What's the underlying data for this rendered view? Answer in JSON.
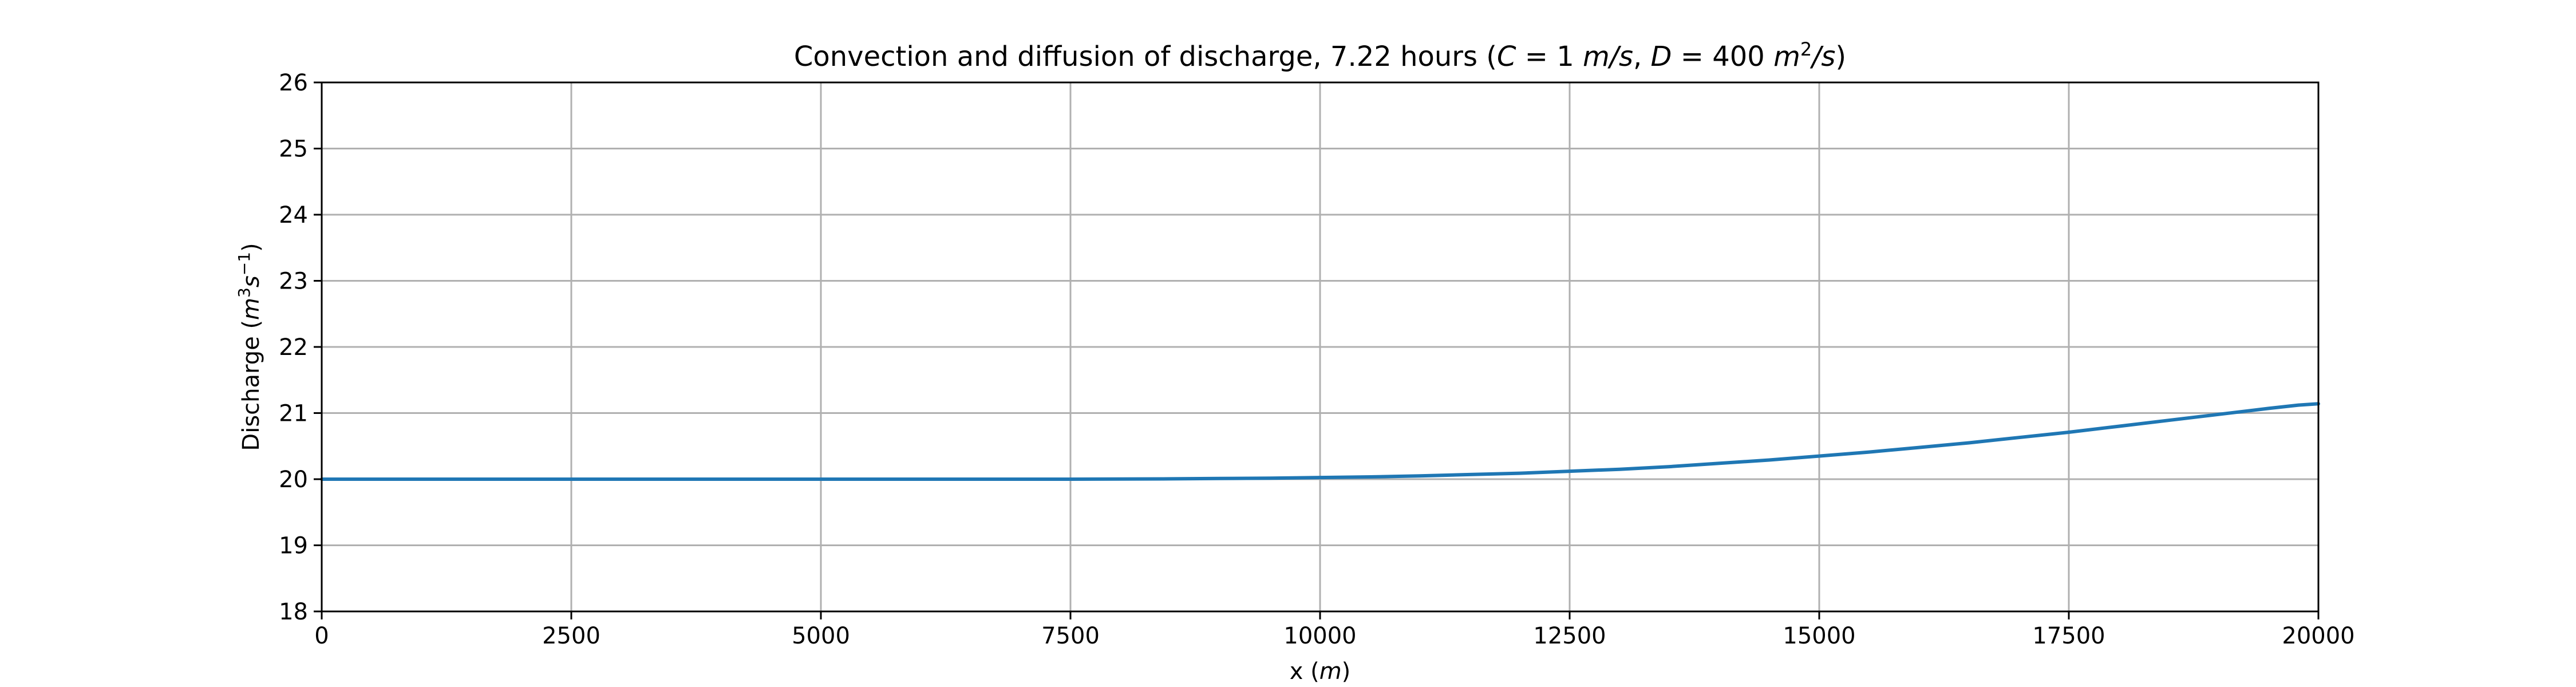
{
  "chart_data": {
    "type": "line",
    "title": {
      "prefix": "Convection and diffusion of discharge, 7.22 hours (",
      "c_var": "C",
      "c_value": " = 1 ",
      "c_unit": "m/s",
      "separator": ", ",
      "d_var": "D",
      "d_value": " = 400 ",
      "d_unit_base": "m",
      "d_unit_exp": "2",
      "d_unit_rest": "/s",
      "suffix": ")"
    },
    "xlabel": {
      "text": "x (",
      "unit": "m",
      "close": ")"
    },
    "ylabel": {
      "text": "Discharge (",
      "unit_m": "m",
      "unit_m_exp": "3",
      "unit_s": "s",
      "unit_s_exp": "−1",
      "close": ")"
    },
    "xlim": [
      0,
      20000
    ],
    "ylim": [
      18,
      26
    ],
    "xticks": [
      0,
      2500,
      5000,
      7500,
      10000,
      12500,
      15000,
      17500,
      20000
    ],
    "xtick_labels": [
      "0",
      "2500",
      "5000",
      "7500",
      "10000",
      "12500",
      "15000",
      "17500",
      "20000"
    ],
    "yticks": [
      18,
      19,
      20,
      21,
      22,
      23,
      24,
      25,
      26
    ],
    "ytick_labels": [
      "18",
      "19",
      "20",
      "21",
      "22",
      "23",
      "24",
      "25",
      "26"
    ],
    "grid": true,
    "series": [
      {
        "color": "#1f77b4",
        "x": [
          0,
          2500,
          5000,
          7500,
          8500,
          9000,
          9500,
          10000,
          10500,
          11000,
          11500,
          12000,
          12500,
          13000,
          13500,
          14000,
          14500,
          15000,
          15500,
          16000,
          16500,
          17000,
          17500,
          18000,
          18500,
          19000,
          19500,
          19800,
          20000
        ],
        "y": [
          20.0,
          20.0,
          20.0,
          20.0,
          20.005,
          20.01,
          20.015,
          20.025,
          20.035,
          20.05,
          20.07,
          20.09,
          20.12,
          20.15,
          20.19,
          20.24,
          20.29,
          20.35,
          20.41,
          20.48,
          20.55,
          20.63,
          20.71,
          20.8,
          20.89,
          20.98,
          21.07,
          21.12,
          21.14
        ]
      }
    ]
  }
}
